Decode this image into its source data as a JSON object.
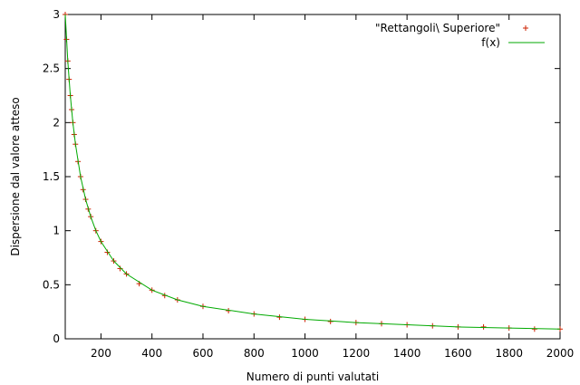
{
  "chart_data": {
    "type": "scatter",
    "title": "",
    "xlabel": "Numero di punti valutati",
    "ylabel": "Dispersione dal valore atteso",
    "xlim": [
      60,
      2000
    ],
    "ylim": [
      0,
      3
    ],
    "x_ticks": [
      "200",
      "400",
      "600",
      "800",
      "1000",
      "1200",
      "1400",
      "1600",
      "1800",
      "2000"
    ],
    "y_ticks": [
      "0",
      "0.5",
      "1",
      "1.5",
      "2",
      "2.5",
      "3"
    ],
    "grid": false,
    "legend_position": "top-right",
    "legend": {
      "entries": [
        {
          "label": "\"Rettangoli\\ Superiore\"",
          "marker": "plus",
          "color": "#cc2200"
        },
        {
          "label": "f(x)",
          "marker": "line",
          "color": "#00aa00"
        }
      ]
    },
    "series": [
      {
        "name": "\"Rettangoli\\ Superiore\"",
        "style": "points",
        "marker": "plus",
        "color": "#cc2200",
        "x": [
          60,
          65,
          70,
          75,
          80,
          85,
          90,
          95,
          100,
          110,
          120,
          130,
          140,
          150,
          160,
          180,
          200,
          225,
          250,
          275,
          300,
          350,
          400,
          450,
          500,
          600,
          700,
          800,
          900,
          1000,
          1100,
          1200,
          1300,
          1400,
          1500,
          1600,
          1700,
          1800,
          1900,
          2000
        ],
        "y": [
          3.0,
          2.77,
          2.57,
          2.4,
          2.25,
          2.12,
          2.0,
          1.89,
          1.8,
          1.64,
          1.5,
          1.38,
          1.29,
          1.2,
          1.13,
          1.0,
          0.9,
          0.8,
          0.72,
          0.65,
          0.6,
          0.51,
          0.45,
          0.4,
          0.36,
          0.3,
          0.26,
          0.23,
          0.2,
          0.18,
          0.16,
          0.15,
          0.14,
          0.13,
          0.12,
          0.11,
          0.11,
          0.1,
          0.09,
          0.09
        ]
      },
      {
        "name": "f(x)",
        "style": "line",
        "color": "#00aa00",
        "x": [
          60,
          70,
          80,
          90,
          100,
          120,
          140,
          160,
          180,
          200,
          250,
          300,
          400,
          500,
          600,
          800,
          1000,
          1200,
          1400,
          1600,
          1800,
          2000
        ],
        "y": [
          3.0,
          2.57,
          2.25,
          2.0,
          1.8,
          1.5,
          1.29,
          1.13,
          1.0,
          0.9,
          0.72,
          0.6,
          0.45,
          0.36,
          0.3,
          0.23,
          0.18,
          0.15,
          0.13,
          0.11,
          0.1,
          0.09
        ]
      }
    ]
  }
}
